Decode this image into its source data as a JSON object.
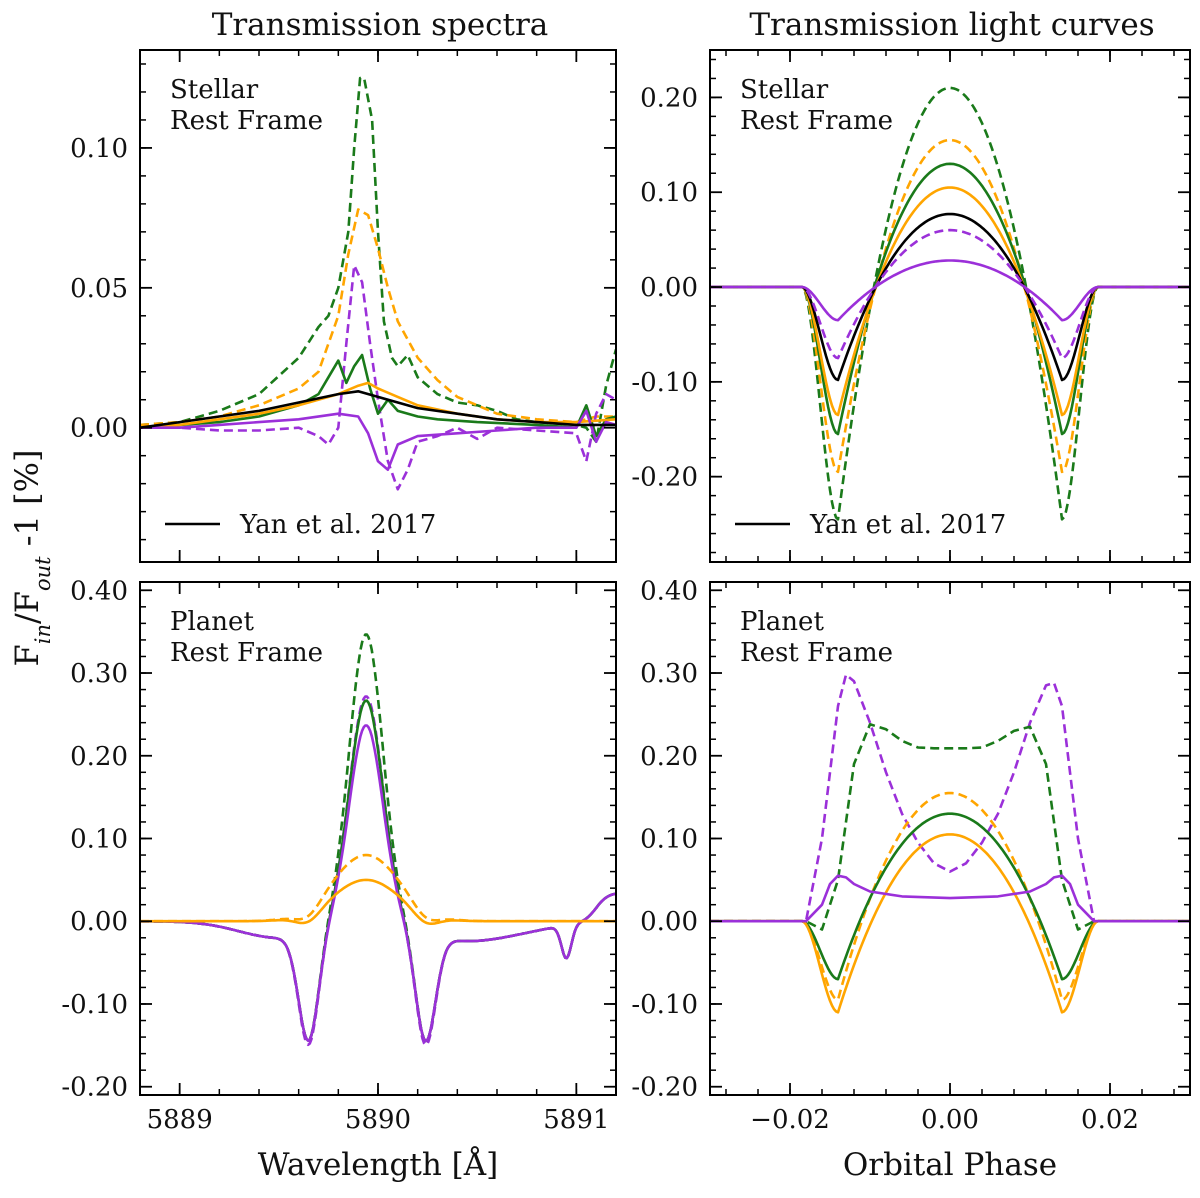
{
  "figure": {
    "shared_ylabel": "F_in/F_out -1 [%]",
    "column_titles": [
      "Transmission spectra",
      "Transmission light curves"
    ],
    "colors": {
      "green": "#1a7a1a",
      "orange": "#ffa500",
      "purple": "#9b30d9",
      "black": "#000000"
    }
  },
  "chart_data": [
    {
      "id": "stellar-spectra",
      "type": "line",
      "title": "Transmission spectra",
      "annotation": [
        "Stellar",
        "Rest Frame"
      ],
      "xlabel": "",
      "ylabel": "F_in/F_out -1 [%]",
      "xlim": [
        5888.8,
        5891.2
      ],
      "ylim": [
        -0.048,
        0.135
      ],
      "xticks": [
        5889,
        5890,
        5891
      ],
      "xticklabels": [
        "",
        "",
        ""
      ],
      "yticks": [
        0.0,
        0.05,
        0.1
      ],
      "yticklabels": [
        "0.00",
        "0.05",
        "0.10"
      ],
      "legend": {
        "label": "Yan et al. 2017",
        "position": "lower-left"
      },
      "series": [
        {
          "name": "green dashed",
          "color": "green",
          "dash": true,
          "x": [
            5888.8,
            5889.0,
            5889.2,
            5889.4,
            5889.6,
            5889.7,
            5889.75,
            5889.8,
            5889.85,
            5889.88,
            5889.91,
            5889.93,
            5889.97,
            5890.0,
            5890.03,
            5890.07,
            5890.1,
            5890.15,
            5890.2,
            5890.3,
            5890.4,
            5890.5,
            5890.6,
            5890.7,
            5890.8,
            5891.0,
            5891.05,
            5891.1,
            5891.15,
            5891.2
          ],
          "y": [
            0.001,
            0.002,
            0.006,
            0.012,
            0.025,
            0.036,
            0.04,
            0.05,
            0.07,
            0.1,
            0.125,
            0.125,
            0.11,
            0.07,
            0.038,
            0.025,
            0.022,
            0.026,
            0.018,
            0.012,
            0.009,
            0.008,
            0.006,
            0.003,
            0.002,
            0.001,
            0.0,
            -0.005,
            0.015,
            0.028
          ]
        },
        {
          "name": "orange dashed",
          "color": "orange",
          "dash": true,
          "x": [
            5888.8,
            5889.0,
            5889.2,
            5889.4,
            5889.6,
            5889.7,
            5889.8,
            5889.85,
            5889.9,
            5889.95,
            5890.0,
            5890.05,
            5890.1,
            5890.2,
            5890.3,
            5890.4,
            5890.5,
            5890.6,
            5890.8,
            5891.0,
            5891.1,
            5891.2
          ],
          "y": [
            0.001,
            0.002,
            0.004,
            0.008,
            0.014,
            0.02,
            0.04,
            0.062,
            0.078,
            0.076,
            0.064,
            0.05,
            0.038,
            0.025,
            0.017,
            0.011,
            0.008,
            0.005,
            0.003,
            0.002,
            0.004,
            0.004
          ]
        },
        {
          "name": "purple dashed",
          "color": "purple",
          "dash": true,
          "x": [
            5888.8,
            5889.0,
            5889.2,
            5889.4,
            5889.6,
            5889.7,
            5889.75,
            5889.8,
            5889.84,
            5889.88,
            5889.92,
            5889.96,
            5890.0,
            5890.05,
            5890.1,
            5890.15,
            5890.2,
            5890.3,
            5890.4,
            5890.5,
            5890.6,
            5890.8,
            5891.0,
            5891.05,
            5891.1,
            5891.15,
            5891.2
          ],
          "y": [
            0.0,
            0.0,
            -0.001,
            -0.001,
            0.0,
            -0.003,
            -0.006,
            0.0,
            0.03,
            0.058,
            0.052,
            0.03,
            0.01,
            -0.012,
            -0.022,
            -0.015,
            -0.005,
            -0.003,
            0.0,
            -0.004,
            0.0,
            -0.001,
            -0.002,
            -0.012,
            0.005,
            0.012,
            0.01
          ]
        },
        {
          "name": "green solid",
          "color": "green",
          "dash": false,
          "x": [
            5888.8,
            5889.0,
            5889.2,
            5889.4,
            5889.6,
            5889.7,
            5889.75,
            5889.8,
            5889.84,
            5889.88,
            5889.92,
            5889.96,
            5890.0,
            5890.05,
            5890.1,
            5890.2,
            5890.3,
            5890.5,
            5890.8,
            5891.0,
            5891.05,
            5891.1,
            5891.15,
            5891.2
          ],
          "y": [
            0.0,
            0.001,
            0.002,
            0.004,
            0.008,
            0.012,
            0.018,
            0.024,
            0.016,
            0.022,
            0.026,
            0.014,
            0.005,
            0.01,
            0.006,
            0.004,
            0.003,
            0.002,
            0.001,
            0.0,
            0.008,
            -0.003,
            0.003,
            0.004
          ]
        },
        {
          "name": "orange solid",
          "color": "orange",
          "dash": false,
          "x": [
            5888.8,
            5889.0,
            5889.2,
            5889.4,
            5889.6,
            5889.8,
            5889.9,
            5889.95,
            5890.0,
            5890.1,
            5890.2,
            5890.4,
            5890.6,
            5890.8,
            5891.0,
            5891.2
          ],
          "y": [
            0.0,
            0.001,
            0.003,
            0.005,
            0.008,
            0.012,
            0.015,
            0.016,
            0.014,
            0.011,
            0.008,
            0.005,
            0.003,
            0.002,
            0.002,
            0.003
          ]
        },
        {
          "name": "purple solid",
          "color": "purple",
          "dash": false,
          "x": [
            5888.8,
            5889.0,
            5889.2,
            5889.4,
            5889.6,
            5889.8,
            5889.9,
            5889.95,
            5890.0,
            5890.05,
            5890.1,
            5890.2,
            5890.4,
            5890.6,
            5890.8,
            5891.0,
            5891.05,
            5891.1,
            5891.15,
            5891.2
          ],
          "y": [
            0.0,
            0.0,
            0.001,
            0.002,
            0.003,
            0.005,
            0.004,
            -0.002,
            -0.012,
            -0.015,
            -0.006,
            -0.003,
            -0.002,
            -0.001,
            0.0,
            0.0,
            0.006,
            -0.005,
            0.002,
            0.001
          ]
        },
        {
          "name": "Yan et al. 2017",
          "color": "black",
          "dash": false,
          "x": [
            5888.8,
            5889.0,
            5889.2,
            5889.4,
            5889.6,
            5889.8,
            5889.9,
            5890.0,
            5890.1,
            5890.2,
            5890.4,
            5890.6,
            5890.8,
            5891.0,
            5891.2
          ],
          "y": [
            0.0,
            0.002,
            0.004,
            0.006,
            0.009,
            0.012,
            0.013,
            0.011,
            0.009,
            0.007,
            0.005,
            0.003,
            0.002,
            0.001,
            0.001
          ]
        }
      ]
    },
    {
      "id": "stellar-lightcurves",
      "type": "line",
      "title": "Transmission light curves",
      "annotation": [
        "Stellar",
        "Rest Frame"
      ],
      "xlabel": "",
      "xlim": [
        -0.03,
        0.03
      ],
      "ylim": [
        -0.29,
        0.25
      ],
      "xticks": [
        -0.02,
        0.0,
        0.02
      ],
      "xticklabels": [
        "",
        "",
        ""
      ],
      "yticks": [
        -0.2,
        -0.1,
        0.0,
        0.1,
        0.2
      ],
      "yticklabels": [
        "-0.20",
        "-0.10",
        "0.00",
        "0.10",
        "0.20"
      ],
      "legend": {
        "label": "Yan et al. 2017",
        "position": "lower-left"
      },
      "series": [
        {
          "name": "green dashed",
          "color": "green",
          "dash": true,
          "mode": "curve",
          "peak": 0.21,
          "dip": -0.245
        },
        {
          "name": "orange dashed",
          "color": "orange",
          "dash": true,
          "mode": "curve",
          "peak": 0.155,
          "dip": -0.195
        },
        {
          "name": "green solid",
          "color": "green",
          "dash": false,
          "mode": "curve",
          "peak": 0.13,
          "dip": -0.155
        },
        {
          "name": "orange solid",
          "color": "orange",
          "dash": false,
          "mode": "curve",
          "peak": 0.105,
          "dip": -0.135
        },
        {
          "name": "Yan et al. 2017",
          "color": "black",
          "dash": false,
          "mode": "curve",
          "peak": 0.077,
          "dip": -0.098
        },
        {
          "name": "purple dashed",
          "color": "purple",
          "dash": true,
          "mode": "curve",
          "peak": 0.06,
          "dip": -0.075
        },
        {
          "name": "purple solid",
          "color": "purple",
          "dash": false,
          "mode": "curve",
          "peak": 0.028,
          "dip": -0.035
        }
      ]
    },
    {
      "id": "planet-spectra",
      "type": "line",
      "annotation": [
        "Planet",
        "Rest Frame"
      ],
      "xlabel": "Wavelength [Å]",
      "xlim": [
        5888.8,
        5891.2
      ],
      "ylim": [
        -0.21,
        0.41
      ],
      "xticks": [
        5889,
        5890,
        5891
      ],
      "xticklabels": [
        "5889",
        "5890",
        "5891"
      ],
      "yticks": [
        -0.2,
        -0.1,
        0.0,
        0.1,
        0.2,
        0.3,
        0.4
      ],
      "yticklabels": [
        "-0.20",
        "-0.10",
        "0.00",
        "0.10",
        "0.20",
        "0.30",
        "0.40"
      ],
      "series": [
        {
          "name": "green dashed",
          "color": "green",
          "dash": true,
          "mode": "absorb",
          "peak": 0.35,
          "trough": -0.13
        },
        {
          "name": "purple dashed",
          "color": "purple",
          "dash": true,
          "mode": "absorb",
          "peak": 0.275,
          "trough": -0.135
        },
        {
          "name": "green solid",
          "color": "green",
          "dash": false,
          "mode": "absorb",
          "peak": 0.27,
          "trough": -0.13
        },
        {
          "name": "purple solid",
          "color": "purple",
          "dash": false,
          "mode": "absorb",
          "peak": 0.24,
          "trough": -0.13
        },
        {
          "name": "orange dashed",
          "color": "orange",
          "dash": true,
          "mode": "emission",
          "peak": 0.08
        },
        {
          "name": "orange solid",
          "color": "orange",
          "dash": false,
          "mode": "emission",
          "peak": 0.05
        }
      ]
    },
    {
      "id": "planet-lightcurves",
      "type": "line",
      "annotation": [
        "Planet",
        "Rest Frame"
      ],
      "xlabel": "Orbital Phase",
      "xlim": [
        -0.03,
        0.03
      ],
      "ylim": [
        -0.21,
        0.41
      ],
      "xticks": [
        -0.02,
        0.0,
        0.02
      ],
      "xticklabels": [
        "−0.02",
        "0.00",
        "0.02"
      ],
      "yticks": [
        -0.2,
        -0.1,
        0.0,
        0.1,
        0.2,
        0.3,
        0.4
      ],
      "yticklabels": [
        "-0.20",
        "-0.10",
        "0.00",
        "0.10",
        "0.20",
        "0.30",
        "0.40"
      ],
      "series": [
        {
          "name": "purple dashed",
          "color": "purple",
          "dash": true,
          "mode": "points",
          "x": [
            -0.03,
            -0.018,
            -0.016,
            -0.014,
            -0.013,
            -0.012,
            -0.01,
            -0.008,
            -0.006,
            -0.004,
            -0.002,
            0.0,
            0.002,
            0.004,
            0.006,
            0.008,
            0.01,
            0.012,
            0.013,
            0.014,
            0.016,
            0.018,
            0.03
          ],
          "y": [
            0.0,
            0.0,
            0.1,
            0.26,
            0.298,
            0.29,
            0.24,
            0.18,
            0.13,
            0.095,
            0.07,
            0.06,
            0.07,
            0.095,
            0.13,
            0.18,
            0.24,
            0.285,
            0.288,
            0.26,
            0.1,
            0.0,
            0.0
          ]
        },
        {
          "name": "green dashed",
          "color": "green",
          "dash": true,
          "mode": "points",
          "x": [
            -0.03,
            -0.018,
            -0.016,
            -0.014,
            -0.012,
            -0.01,
            -0.008,
            -0.006,
            -0.004,
            -0.002,
            0.0,
            0.002,
            0.004,
            0.006,
            0.008,
            0.01,
            0.012,
            0.014,
            0.016,
            0.018,
            0.03
          ],
          "y": [
            0.0,
            0.0,
            -0.01,
            0.05,
            0.19,
            0.238,
            0.232,
            0.218,
            0.21,
            0.209,
            0.209,
            0.209,
            0.21,
            0.218,
            0.23,
            0.235,
            0.19,
            0.05,
            -0.01,
            0.0,
            0.0
          ]
        },
        {
          "name": "orange dashed",
          "color": "orange",
          "dash": true,
          "mode": "curve",
          "peak": 0.155,
          "dip": -0.095
        },
        {
          "name": "green solid",
          "color": "green",
          "dash": false,
          "mode": "curve",
          "peak": 0.13,
          "dip": -0.07
        },
        {
          "name": "orange solid",
          "color": "orange",
          "dash": false,
          "mode": "curve",
          "peak": 0.105,
          "dip": -0.11
        },
        {
          "name": "purple solid",
          "color": "purple",
          "dash": false,
          "mode": "points",
          "x": [
            -0.03,
            -0.018,
            -0.016,
            -0.015,
            -0.014,
            -0.013,
            -0.012,
            -0.01,
            -0.006,
            0.0,
            0.006,
            0.01,
            0.012,
            0.013,
            0.014,
            0.015,
            0.016,
            0.018,
            0.03
          ],
          "y": [
            0.0,
            0.0,
            0.02,
            0.045,
            0.055,
            0.053,
            0.045,
            0.036,
            0.03,
            0.028,
            0.03,
            0.036,
            0.045,
            0.053,
            0.055,
            0.045,
            0.02,
            0.0,
            0.0
          ]
        }
      ]
    }
  ]
}
